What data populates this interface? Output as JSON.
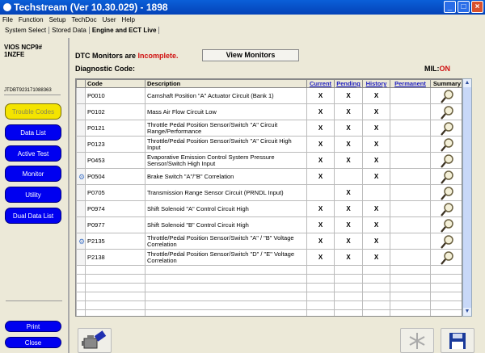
{
  "window": {
    "title": "Techstream (Ver 10.30.029) - 1898"
  },
  "menu": [
    "File",
    "Function",
    "Setup",
    "TechDoc",
    "User",
    "Help"
  ],
  "tabs": [
    {
      "label": "System Select"
    },
    {
      "label": "Stored Data"
    },
    {
      "label": "Engine and ECT Live",
      "active": true
    }
  ],
  "vehicle": {
    "model": "VIOS NCP9#",
    "engine": "1NZFE",
    "vin": "JTDBT923171088363"
  },
  "nav": [
    {
      "label": "Trouble Codes",
      "selected": true
    },
    {
      "label": "Data List"
    },
    {
      "label": "Active Test"
    },
    {
      "label": "Monitor"
    },
    {
      "label": "Utility"
    },
    {
      "label": "Dual Data List"
    }
  ],
  "nav_bottom": {
    "print": "Print",
    "close": "Close"
  },
  "status": {
    "dtc_prefix": "DTC Monitors are",
    "dtc_state": "Incomplete.",
    "diag_label": "Diagnostic Code:",
    "view_monitors": "View Monitors",
    "mil_label": "MIL:",
    "mil_value": "ON"
  },
  "table": {
    "headers": [
      "Code",
      "Description",
      "Current",
      "Pending",
      "History",
      "Permanent",
      "Summary"
    ],
    "rows": [
      {
        "code": "P0010",
        "desc": "Camshaft Position \"A\" Actuator Circuit (Bank 1)",
        "current": "X",
        "pending": "X",
        "history": "X",
        "permanent": "",
        "icon": ""
      },
      {
        "code": "P0102",
        "desc": "Mass Air Flow Circuit Low",
        "current": "X",
        "pending": "X",
        "history": "X",
        "permanent": "",
        "icon": ""
      },
      {
        "code": "P0121",
        "desc": "Throttle Pedal Position Sensor/Switch \"A\" Circuit Range/Performance",
        "current": "X",
        "pending": "X",
        "history": "X",
        "permanent": "",
        "icon": ""
      },
      {
        "code": "P0123",
        "desc": "Throttle/Pedal Position Sensor/Switch \"A\" Circuit High Input",
        "current": "X",
        "pending": "X",
        "history": "X",
        "permanent": "",
        "icon": ""
      },
      {
        "code": "P0453",
        "desc": "Evaporative Emission Control System Pressure Sensor/Switch High Input",
        "current": "X",
        "pending": "X",
        "history": "X",
        "permanent": "",
        "icon": ""
      },
      {
        "code": "P0504",
        "desc": "Brake Switch \"A\"/\"B\" Correlation",
        "current": "X",
        "pending": "",
        "history": "X",
        "permanent": "",
        "icon": "freeze-frame"
      },
      {
        "code": "P0705",
        "desc": "Transmission Range Sensor Circuit (PRNDL Input)",
        "current": "",
        "pending": "X",
        "history": "",
        "permanent": "",
        "icon": ""
      },
      {
        "code": "P0974",
        "desc": "Shift Solenoid \"A\" Control Circuit High",
        "current": "X",
        "pending": "X",
        "history": "X",
        "permanent": "",
        "icon": ""
      },
      {
        "code": "P0977",
        "desc": "Shift Solenoid \"B\" Control Circuit High",
        "current": "X",
        "pending": "X",
        "history": "X",
        "permanent": "",
        "icon": ""
      },
      {
        "code": "P2135",
        "desc": "Throttle/Pedal Position Sensor/Switch \"A\" / \"B\" Voltage Correlation",
        "current": "X",
        "pending": "X",
        "history": "X",
        "permanent": "",
        "icon": "freeze-frame"
      },
      {
        "code": "P2138",
        "desc": "Throttle/Pedal Position Sensor/Switch \"D\" / \"E\" Voltage Correlation",
        "current": "X",
        "pending": "X",
        "history": "X",
        "permanent": "",
        "icon": ""
      }
    ]
  },
  "icons": {
    "summary": "magnifier-icon",
    "bottom": [
      "engine-eraser-icon",
      "snowflake-icon",
      "save-disk-icon"
    ]
  }
}
